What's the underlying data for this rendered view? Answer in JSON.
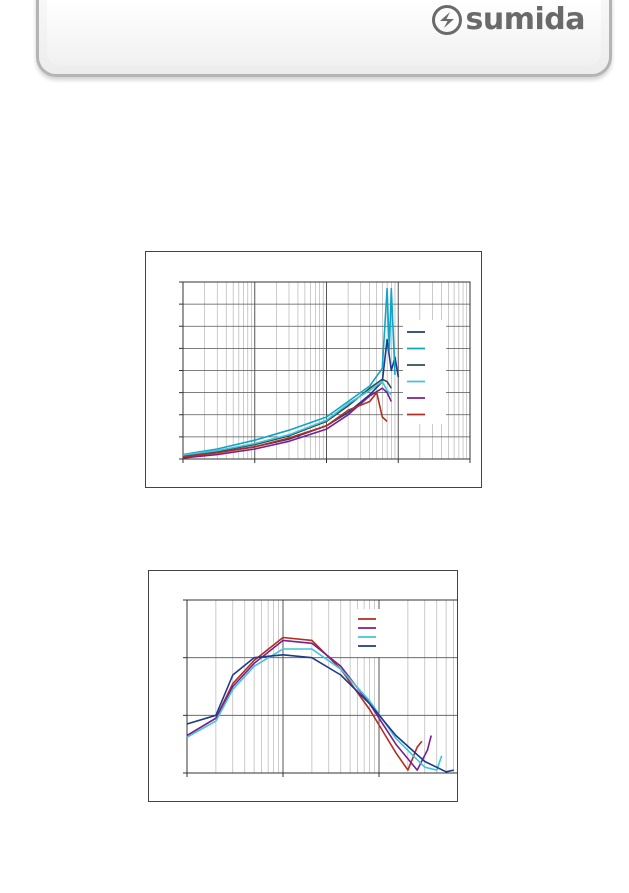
{
  "header": {
    "brand_name": "sumida",
    "logo_icon": "sumida-logo-icon",
    "text_color": "#6a6a6a"
  },
  "chart_data": [
    {
      "type": "line",
      "xscale": "log",
      "xlim": [
        1,
        10000
      ],
      "ylim": [
        0,
        8
      ],
      "grid": true,
      "legend_placement": "right",
      "series": [
        {
          "color": "#1f3a8a",
          "values": [
            [
              1,
              0.1
            ],
            [
              3,
              0.3
            ],
            [
              10,
              0.55
            ],
            [
              30,
              0.9
            ],
            [
              100,
              1.5
            ],
            [
              200,
              2.1
            ],
            [
              400,
              2.9
            ],
            [
              600,
              3.5
            ],
            [
              700,
              5.4
            ],
            [
              800,
              4.0
            ],
            [
              900,
              4.6
            ],
            [
              1000,
              3.7
            ]
          ]
        },
        {
          "color": "#13a3c7",
          "values": [
            [
              1,
              0.2
            ],
            [
              3,
              0.45
            ],
            [
              10,
              0.85
            ],
            [
              30,
              1.3
            ],
            [
              100,
              1.9
            ],
            [
              200,
              2.6
            ],
            [
              400,
              3.3
            ],
            [
              600,
              4.1
            ],
            [
              700,
              7.7
            ],
            [
              750,
              4.9
            ],
            [
              800,
              7.7
            ],
            [
              900,
              3.8
            ]
          ]
        },
        {
          "color": "#2f4f4f",
          "values": [
            [
              1,
              0.15
            ],
            [
              3,
              0.35
            ],
            [
              10,
              0.65
            ],
            [
              30,
              1.05
            ],
            [
              100,
              1.7
            ],
            [
              200,
              2.4
            ],
            [
              400,
              3.2
            ],
            [
              600,
              3.6
            ],
            [
              700,
              3.5
            ],
            [
              800,
              3.2
            ]
          ]
        },
        {
          "color": "#40c4dc",
          "values": [
            [
              1,
              0.18
            ],
            [
              3,
              0.38
            ],
            [
              10,
              0.7
            ],
            [
              30,
              1.1
            ],
            [
              100,
              1.75
            ],
            [
              200,
              2.5
            ],
            [
              400,
              3.1
            ],
            [
              600,
              3.5
            ],
            [
              700,
              3.1
            ],
            [
              800,
              2.9
            ]
          ]
        },
        {
          "color": "#7b1f8e",
          "values": [
            [
              1,
              0.05
            ],
            [
              3,
              0.2
            ],
            [
              10,
              0.45
            ],
            [
              30,
              0.8
            ],
            [
              100,
              1.35
            ],
            [
              200,
              2.0
            ],
            [
              400,
              2.85
            ],
            [
              600,
              3.2
            ],
            [
              700,
              3.0
            ],
            [
              800,
              2.6
            ]
          ]
        },
        {
          "color": "#b22e1e",
          "values": [
            [
              1,
              0.1
            ],
            [
              3,
              0.28
            ],
            [
              10,
              0.55
            ],
            [
              30,
              0.95
            ],
            [
              100,
              1.5
            ],
            [
              200,
              2.2
            ],
            [
              400,
              2.6
            ],
            [
              500,
              3.0
            ],
            [
              600,
              1.9
            ],
            [
              700,
              1.7
            ]
          ]
        }
      ]
    },
    {
      "type": "line",
      "xscale": "log",
      "xlim": [
        1,
        1000
      ],
      "ylim": [
        0,
        3
      ],
      "grid": true,
      "legend_placement": "top-right",
      "series": [
        {
          "color": "#b22e1e",
          "values": [
            [
              1,
              0.65
            ],
            [
              2,
              0.95
            ],
            [
              3,
              1.55
            ],
            [
              5,
              1.95
            ],
            [
              10,
              2.35
            ],
            [
              20,
              2.3
            ],
            [
              40,
              1.8
            ],
            [
              80,
              1.1
            ],
            [
              150,
              0.35
            ],
            [
              200,
              0.05
            ],
            [
              250,
              0.45
            ],
            [
              280,
              0.55
            ]
          ]
        },
        {
          "color": "#7b1f8e",
          "values": [
            [
              1,
              0.65
            ],
            [
              2,
              0.95
            ],
            [
              3,
              1.5
            ],
            [
              5,
              1.9
            ],
            [
              10,
              2.3
            ],
            [
              20,
              2.25
            ],
            [
              40,
              1.85
            ],
            [
              80,
              1.2
            ],
            [
              150,
              0.5
            ],
            [
              250,
              0.05
            ],
            [
              320,
              0.4
            ],
            [
              350,
              0.65
            ]
          ]
        },
        {
          "color": "#40c4dc",
          "values": [
            [
              1,
              0.62
            ],
            [
              2,
              0.9
            ],
            [
              3,
              1.45
            ],
            [
              5,
              1.85
            ],
            [
              10,
              2.15
            ],
            [
              20,
              2.15
            ],
            [
              40,
              1.8
            ],
            [
              80,
              1.25
            ],
            [
              150,
              0.6
            ],
            [
              300,
              0.1
            ],
            [
              400,
              0.05
            ],
            [
              450,
              0.3
            ]
          ]
        },
        {
          "color": "#1f3a8a",
          "values": [
            [
              1,
              0.85
            ],
            [
              2,
              1.0
            ],
            [
              3,
              1.7
            ],
            [
              5,
              2.0
            ],
            [
              10,
              2.05
            ],
            [
              20,
              2.0
            ],
            [
              40,
              1.7
            ],
            [
              80,
              1.2
            ],
            [
              150,
              0.65
            ],
            [
              300,
              0.2
            ],
            [
              500,
              0.02
            ],
            [
              600,
              0.05
            ]
          ]
        }
      ]
    }
  ]
}
